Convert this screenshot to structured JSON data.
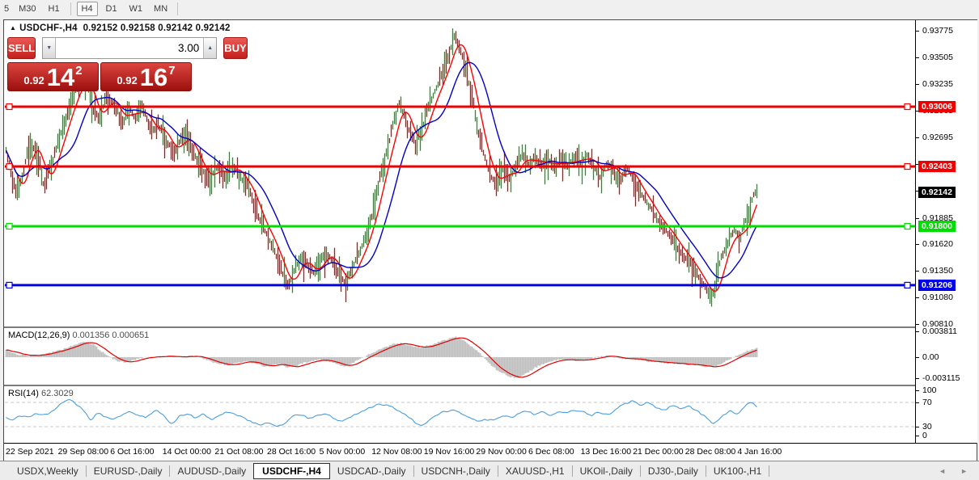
{
  "toolbar": {
    "timeframes": [
      "5",
      "M30",
      "H1",
      "H4",
      "D1",
      "W1",
      "MN"
    ],
    "active": "H4"
  },
  "chart": {
    "symbol": "USDCHF-,H4",
    "ohlc": "0.92152 0.92158 0.92142 0.92142"
  },
  "trade": {
    "sell_label": "SELL",
    "buy_label": "BUY",
    "volume": "3.00",
    "sell_price_small": "0.92",
    "sell_price_big": "14",
    "sell_price_sup": "2",
    "buy_price_small": "0.92",
    "buy_price_big": "16",
    "buy_price_sup": "7"
  },
  "indicators": {
    "macd": {
      "name": "MACD(12,26,9)",
      "values": "0.001356 0.000651",
      "axis": [
        "0.003811",
        "0.00",
        "-0.003115"
      ]
    },
    "rsi": {
      "name": "RSI(14)",
      "value": "62.3029",
      "axis": [
        "100",
        "70",
        "30",
        "0"
      ],
      "levels": [
        70,
        30
      ]
    }
  },
  "x_axis": {
    "labels": [
      "22 Sep 2021",
      "29 Sep 08:00",
      "6 Oct 16:00",
      "14 Oct 00:00",
      "21 Oct 08:00",
      "28 Oct 16:00",
      "5 Nov 00:00",
      "12 Nov 08:00",
      "19 Nov 16:00",
      "29 Nov 00:00",
      "6 Dec 08:00",
      "13 Dec 16:00",
      "21 Dec 00:00",
      "28 Dec 08:00",
      "4 Jan 16:00"
    ]
  },
  "tabs": {
    "items": [
      "USDX,Weekly",
      "EURUSD-,Daily",
      "AUDUSD-,Daily",
      "USDCHF-,H4",
      "USDCAD-,Daily",
      "USDCNH-,Daily",
      "XAUUSD-,H1",
      "UKOil-,Daily",
      "DJ30-,Daily",
      "UK100-,H1"
    ],
    "active": "USDCHF-,H4"
  },
  "icons": {
    "title_marker": "▲",
    "spin_down": "▼",
    "spin_up": "▲",
    "scroll_left": "◄",
    "scroll_right": "►"
  },
  "chart_data": {
    "type": "candlestick+indicators",
    "symbol": "USDCHF-,H4",
    "ohlc_current": {
      "open": "0.92152",
      "high": "0.92158",
      "low": "0.92142",
      "close": "0.92142"
    },
    "price_axis": {
      "ticks": [
        "0.93775",
        "0.93505",
        "0.93235",
        "0.92965",
        "0.92695",
        "0.92425",
        "0.92155",
        "0.91885",
        "0.91620",
        "0.91350",
        "0.91080",
        "0.90810"
      ],
      "min": 0.9081,
      "max": 0.93775
    },
    "hlines": [
      {
        "price": "0.93006",
        "color": "#f20000"
      },
      {
        "price": "0.92403",
        "color": "#f20000"
      },
      {
        "price": "0.91800",
        "color": "#00dd00"
      },
      {
        "price": "0.91206",
        "color": "#0000e8"
      }
    ],
    "current_price": {
      "text": "0.92142",
      "bg": "#000000"
    },
    "macd_axis_values": [
      0.003811,
      0,
      -0.003115
    ],
    "colors": {
      "up": "#00a800",
      "down": "#e00000",
      "ma_fast": "#ff0000",
      "ma_slow": "#0000c8",
      "macd_hist": "#bfbfbf",
      "macd_signal": "#e00000",
      "rsi": "#4a9ede",
      "level_dash": "#c8c8c8"
    },
    "price_keyframes": [
      [
        0,
        0.9262
      ],
      [
        6,
        0.924
      ],
      [
        14,
        0.9212
      ],
      [
        22,
        0.923
      ],
      [
        30,
        0.9262
      ],
      [
        40,
        0.9255
      ],
      [
        48,
        0.9222
      ],
      [
        56,
        0.9238
      ],
      [
        64,
        0.9258
      ],
      [
        72,
        0.928
      ],
      [
        82,
        0.9305
      ],
      [
        92,
        0.9325
      ],
      [
        100,
        0.933
      ],
      [
        108,
        0.93
      ],
      [
        116,
        0.9288
      ],
      [
        126,
        0.931
      ],
      [
        136,
        0.93
      ],
      [
        146,
        0.9285
      ],
      [
        154,
        0.93
      ],
      [
        162,
        0.9288
      ],
      [
        170,
        0.9302
      ],
      [
        180,
        0.9275
      ],
      [
        190,
        0.9282
      ],
      [
        200,
        0.9265
      ],
      [
        210,
        0.9255
      ],
      [
        220,
        0.9272
      ],
      [
        230,
        0.9262
      ],
      [
        240,
        0.924
      ],
      [
        252,
        0.9228
      ],
      [
        262,
        0.924
      ],
      [
        272,
        0.923
      ],
      [
        282,
        0.9242
      ],
      [
        292,
        0.9228
      ],
      [
        302,
        0.9218
      ],
      [
        312,
        0.9192
      ],
      [
        322,
        0.9175
      ],
      [
        330,
        0.9162
      ],
      [
        340,
        0.914
      ],
      [
        350,
        0.9118
      ],
      [
        358,
        0.9135
      ],
      [
        366,
        0.9148
      ],
      [
        374,
        0.914
      ],
      [
        382,
        0.9132
      ],
      [
        390,
        0.9146
      ],
      [
        398,
        0.9152
      ],
      [
        406,
        0.9143
      ],
      [
        414,
        0.913
      ],
      [
        422,
        0.9122
      ],
      [
        430,
        0.914
      ],
      [
        440,
        0.9155
      ],
      [
        448,
        0.9175
      ],
      [
        456,
        0.9198
      ],
      [
        464,
        0.923
      ],
      [
        472,
        0.9255
      ],
      [
        480,
        0.9282
      ],
      [
        488,
        0.9306
      ],
      [
        494,
        0.929
      ],
      [
        500,
        0.9276
      ],
      [
        508,
        0.9262
      ],
      [
        516,
        0.928
      ],
      [
        524,
        0.93
      ],
      [
        532,
        0.9318
      ],
      [
        540,
        0.9332
      ],
      [
        548,
        0.9352
      ],
      [
        556,
        0.9372
      ],
      [
        562,
        0.936
      ],
      [
        568,
        0.9345
      ],
      [
        574,
        0.9322
      ],
      [
        580,
        0.93
      ],
      [
        586,
        0.9272
      ],
      [
        592,
        0.9252
      ],
      [
        600,
        0.9232
      ],
      [
        608,
        0.9222
      ],
      [
        616,
        0.9238
      ],
      [
        624,
        0.9228
      ],
      [
        632,
        0.924
      ],
      [
        640,
        0.9252
      ],
      [
        648,
        0.9242
      ],
      [
        656,
        0.925
      ],
      [
        664,
        0.924
      ],
      [
        672,
        0.9248
      ],
      [
        680,
        0.9238
      ],
      [
        688,
        0.9248
      ],
      [
        696,
        0.924
      ],
      [
        704,
        0.925
      ],
      [
        712,
        0.9244
      ],
      [
        720,
        0.9252
      ],
      [
        728,
        0.924
      ],
      [
        736,
        0.923
      ],
      [
        744,
        0.9244
      ],
      [
        752,
        0.9236
      ],
      [
        760,
        0.9226
      ],
      [
        768,
        0.924
      ],
      [
        776,
        0.9228
      ],
      [
        784,
        0.9216
      ],
      [
        792,
        0.9206
      ],
      [
        800,
        0.9196
      ],
      [
        808,
        0.9184
      ],
      [
        816,
        0.9178
      ],
      [
        824,
        0.9168
      ],
      [
        832,
        0.9158
      ],
      [
        840,
        0.915
      ],
      [
        848,
        0.9142
      ],
      [
        856,
        0.913
      ],
      [
        864,
        0.912
      ],
      [
        872,
        0.9108
      ],
      [
        878,
        0.9118
      ],
      [
        884,
        0.9145
      ],
      [
        890,
        0.9158
      ],
      [
        896,
        0.9168
      ],
      [
        902,
        0.9176
      ],
      [
        908,
        0.9168
      ],
      [
        914,
        0.9182
      ],
      [
        920,
        0.9196
      ],
      [
        926,
        0.9212
      ],
      [
        930,
        0.9214
      ]
    ],
    "macd_keyframes": [
      [
        0,
        0.0012
      ],
      [
        15,
        0.0004
      ],
      [
        30,
        0.0002
      ],
      [
        45,
        0.0004
      ],
      [
        60,
        0.0008
      ],
      [
        75,
        0.0013
      ],
      [
        90,
        0.002
      ],
      [
        100,
        0.0023
      ],
      [
        110,
        0.0018
      ],
      [
        120,
        0.0008
      ],
      [
        130,
        0
      ],
      [
        140,
        -0.0006
      ],
      [
        150,
        -0.0008
      ],
      [
        160,
        -0.0004
      ],
      [
        170,
        -0.0001
      ],
      [
        180,
        0
      ],
      [
        190,
        0.0001
      ],
      [
        200,
        0.0002
      ],
      [
        215,
        0
      ],
      [
        230,
        0.0002
      ],
      [
        245,
        -0.0002
      ],
      [
        260,
        -0.0009
      ],
      [
        275,
        -0.0012
      ],
      [
        290,
        -0.0008
      ],
      [
        300,
        -0.0006
      ],
      [
        310,
        -0.001
      ],
      [
        320,
        -0.0014
      ],
      [
        330,
        -0.0012
      ],
      [
        340,
        -0.001
      ],
      [
        350,
        -0.0016
      ],
      [
        360,
        -0.0013
      ],
      [
        370,
        -0.0008
      ],
      [
        380,
        -0.0006
      ],
      [
        390,
        -0.0004
      ],
      [
        400,
        -0.0006
      ],
      [
        410,
        -0.001
      ],
      [
        420,
        -0.0014
      ],
      [
        430,
        -0.0008
      ],
      [
        440,
        -0.0002
      ],
      [
        450,
        0.0004
      ],
      [
        460,
        0.001
      ],
      [
        470,
        0.0015
      ],
      [
        480,
        0.0019
      ],
      [
        490,
        0.0021
      ],
      [
        500,
        0.0017
      ],
      [
        510,
        0.0014
      ],
      [
        520,
        0.0016
      ],
      [
        530,
        0.002
      ],
      [
        540,
        0.0024
      ],
      [
        550,
        0.0028
      ],
      [
        558,
        0.003
      ],
      [
        566,
        0.0026
      ],
      [
        575,
        0.0018
      ],
      [
        585,
        0.0008
      ],
      [
        595,
        -0.0004
      ],
      [
        605,
        -0.0016
      ],
      [
        615,
        -0.0024
      ],
      [
        625,
        -0.0029
      ],
      [
        635,
        -0.0031
      ],
      [
        645,
        -0.0024
      ],
      [
        655,
        -0.0016
      ],
      [
        665,
        -0.001
      ],
      [
        675,
        -0.0006
      ],
      [
        685,
        -0.0004
      ],
      [
        695,
        -0.0004
      ],
      [
        705,
        -0.0005
      ],
      [
        715,
        -0.0004
      ],
      [
        725,
        -0.0002
      ],
      [
        735,
        0.0001
      ],
      [
        745,
        0.0002
      ],
      [
        755,
        -0.0001
      ],
      [
        765,
        -0.0003
      ],
      [
        775,
        -0.0002
      ],
      [
        785,
        -0.0004
      ],
      [
        795,
        -0.0006
      ],
      [
        805,
        -0.0007
      ],
      [
        815,
        -0.0008
      ],
      [
        825,
        -0.0009
      ],
      [
        835,
        -0.001
      ],
      [
        845,
        -0.0011
      ],
      [
        855,
        -0.0012
      ],
      [
        865,
        -0.0014
      ],
      [
        875,
        -0.0015
      ],
      [
        885,
        -0.001
      ],
      [
        895,
        -0.0004
      ],
      [
        905,
        0.0003
      ],
      [
        915,
        0.0008
      ],
      [
        925,
        0.0012
      ],
      [
        930,
        0.00136
      ]
    ],
    "rsi_keyframes": [
      [
        0,
        46
      ],
      [
        10,
        42
      ],
      [
        20,
        48
      ],
      [
        30,
        45
      ],
      [
        40,
        52
      ],
      [
        50,
        49
      ],
      [
        60,
        58
      ],
      [
        70,
        68
      ],
      [
        78,
        74
      ],
      [
        85,
        70
      ],
      [
        95,
        62
      ],
      [
        105,
        40
      ],
      [
        115,
        52
      ],
      [
        125,
        46
      ],
      [
        135,
        42
      ],
      [
        145,
        50
      ],
      [
        155,
        55
      ],
      [
        165,
        48
      ],
      [
        175,
        44
      ],
      [
        185,
        58
      ],
      [
        195,
        50
      ],
      [
        205,
        34
      ],
      [
        215,
        46
      ],
      [
        225,
        52
      ],
      [
        235,
        45
      ],
      [
        245,
        50
      ],
      [
        255,
        42
      ],
      [
        265,
        48
      ],
      [
        275,
        55
      ],
      [
        285,
        50
      ],
      [
        295,
        44
      ],
      [
        305,
        38
      ],
      [
        315,
        34
      ],
      [
        325,
        36
      ],
      [
        335,
        30
      ],
      [
        345,
        35
      ],
      [
        355,
        46
      ],
      [
        365,
        50
      ],
      [
        375,
        44
      ],
      [
        385,
        48
      ],
      [
        395,
        52
      ],
      [
        405,
        46
      ],
      [
        415,
        38
      ],
      [
        425,
        44
      ],
      [
        435,
        52
      ],
      [
        445,
        58
      ],
      [
        455,
        62
      ],
      [
        465,
        68
      ],
      [
        475,
        64
      ],
      [
        485,
        58
      ],
      [
        495,
        50
      ],
      [
        505,
        40
      ],
      [
        515,
        30
      ],
      [
        525,
        42
      ],
      [
        535,
        50
      ],
      [
        545,
        55
      ],
      [
        555,
        58
      ],
      [
        565,
        50
      ],
      [
        575,
        44
      ],
      [
        585,
        38
      ],
      [
        595,
        42
      ],
      [
        605,
        40
      ],
      [
        615,
        48
      ],
      [
        625,
        44
      ],
      [
        635,
        52
      ],
      [
        645,
        56
      ],
      [
        655,
        50
      ],
      [
        665,
        54
      ],
      [
        675,
        48
      ],
      [
        685,
        56
      ],
      [
        695,
        52
      ],
      [
        705,
        58
      ],
      [
        715,
        54
      ],
      [
        725,
        48
      ],
      [
        735,
        54
      ],
      [
        745,
        50
      ],
      [
        755,
        58
      ],
      [
        765,
        68
      ],
      [
        775,
        72
      ],
      [
        785,
        66
      ],
      [
        795,
        70
      ],
      [
        805,
        62
      ],
      [
        815,
        56
      ],
      [
        825,
        66
      ],
      [
        835,
        60
      ],
      [
        845,
        64
      ],
      [
        855,
        56
      ],
      [
        865,
        48
      ],
      [
        875,
        34
      ],
      [
        885,
        46
      ],
      [
        895,
        56
      ],
      [
        905,
        52
      ],
      [
        915,
        64
      ],
      [
        925,
        70
      ],
      [
        930,
        62.3
      ]
    ]
  }
}
